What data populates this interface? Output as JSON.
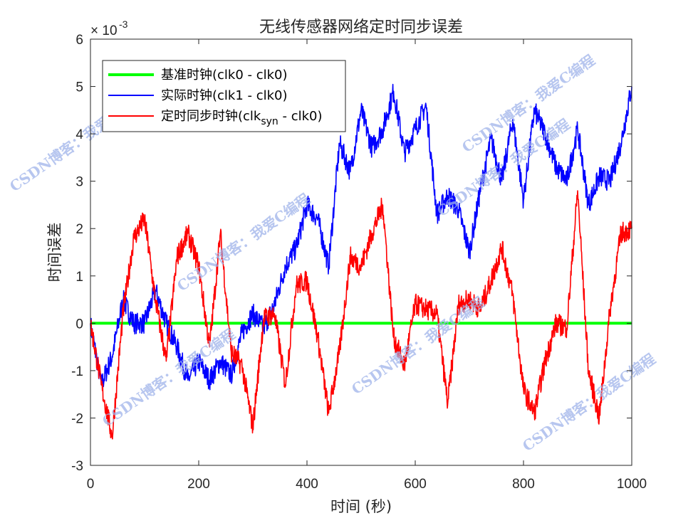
{
  "chart_data": {
    "type": "line",
    "title": "无线传感器网络定时同步误差",
    "xlabel": "时间 (秒)",
    "ylabel": "时间误差",
    "y_exponent_label": "× 10",
    "y_exponent_power": "-3",
    "xlim": [
      0,
      1000
    ],
    "ylim": [
      -0.003,
      0.006
    ],
    "x_ticks": [
      "0",
      "200",
      "400",
      "600",
      "800",
      "1000"
    ],
    "y_ticks": [
      "6",
      "5",
      "4",
      "3",
      "2",
      "1",
      "0",
      "-1",
      "-2",
      "-3"
    ],
    "x": [
      0,
      20,
      40,
      60,
      80,
      100,
      120,
      140,
      160,
      180,
      200,
      220,
      240,
      260,
      280,
      300,
      320,
      340,
      360,
      380,
      400,
      420,
      440,
      460,
      480,
      500,
      520,
      540,
      560,
      580,
      600,
      620,
      640,
      660,
      680,
      700,
      720,
      740,
      760,
      780,
      800,
      820,
      840,
      860,
      880,
      900,
      920,
      940,
      960,
      980,
      1000
    ],
    "series": [
      {
        "name": "基准时钟(clk0 - clk0)",
        "color": "#00ff00",
        "values": [
          0,
          0,
          0,
          0,
          0,
          0,
          0,
          0,
          0,
          0,
          0,
          0,
          0,
          0,
          0,
          0,
          0,
          0,
          0,
          0,
          0,
          0,
          0,
          0,
          0,
          0,
          0,
          0,
          0,
          0,
          0,
          0,
          0,
          0,
          0,
          0,
          0,
          0,
          0,
          0,
          0,
          0,
          0,
          0,
          0,
          0,
          0,
          0,
          0,
          0,
          0
        ]
      },
      {
        "name": "实际时钟(clk1 - clk0)",
        "color": "#0000ff",
        "values": [
          0,
          -0.0013,
          -0.0007,
          0.0005,
          0,
          0,
          0.0007,
          0,
          -0.0005,
          -0.0012,
          -0.0008,
          -0.0012,
          -0.0008,
          -0.0011,
          -0.0002,
          0.0002,
          -0.0001,
          0.0004,
          0.0012,
          0.0016,
          0.0025,
          0.0022,
          0.0012,
          0.0038,
          0.0032,
          0.0045,
          0.0037,
          0.0041,
          0.0049,
          0.0036,
          0.0041,
          0.0046,
          0.0023,
          0.0027,
          0.0024,
          0.0015,
          0.0028,
          0.0039,
          0.003,
          0.0043,
          0.0026,
          0.0045,
          0.004,
          0.0033,
          0.003,
          0.0041,
          0.0025,
          0.0031,
          0.003,
          0.0038,
          0.005
        ]
      },
      {
        "name": "定时同步时钟(clksyn - clk0)",
        "color": "#ff0000",
        "values": [
          0,
          -0.0013,
          -0.0024,
          0.0002,
          0.0018,
          0.0022,
          0.0005,
          -0.0008,
          0.0014,
          0.0019,
          0.0012,
          -0.0005,
          0.0019,
          -0.0006,
          -0.0009,
          -0.0022,
          0.0001,
          0.0002,
          -0.0013,
          0.0008,
          0.0009,
          -0.0003,
          -0.0019,
          -0.0006,
          0.0014,
          0.0012,
          0.0019,
          0.0025,
          -0.0003,
          -0.0009,
          0.0004,
          0.0003,
          0.0002,
          -0.0017,
          0.0004,
          0.0005,
          0.0003,
          0.0009,
          0.0016,
          0.0006,
          -0.0014,
          -0.0019,
          -0.0008,
          0.0,
          -0.0001,
          0.0028,
          -0.001,
          -0.002,
          0.0003,
          0.0019,
          0.002
        ]
      }
    ],
    "legend": {
      "placement": "top-left",
      "entries": [
        {
          "main": "基准时钟(clk0 - clk0)",
          "sub": "",
          "after": ""
        },
        {
          "main": "实际时钟(clk1 - clk0)",
          "sub": "",
          "after": ""
        },
        {
          "main": "定时同步时钟(clk",
          "sub": "syn",
          "after": " - clk0)"
        }
      ]
    },
    "grid": false,
    "watermark": "CSDN博客：我爱C编程"
  }
}
